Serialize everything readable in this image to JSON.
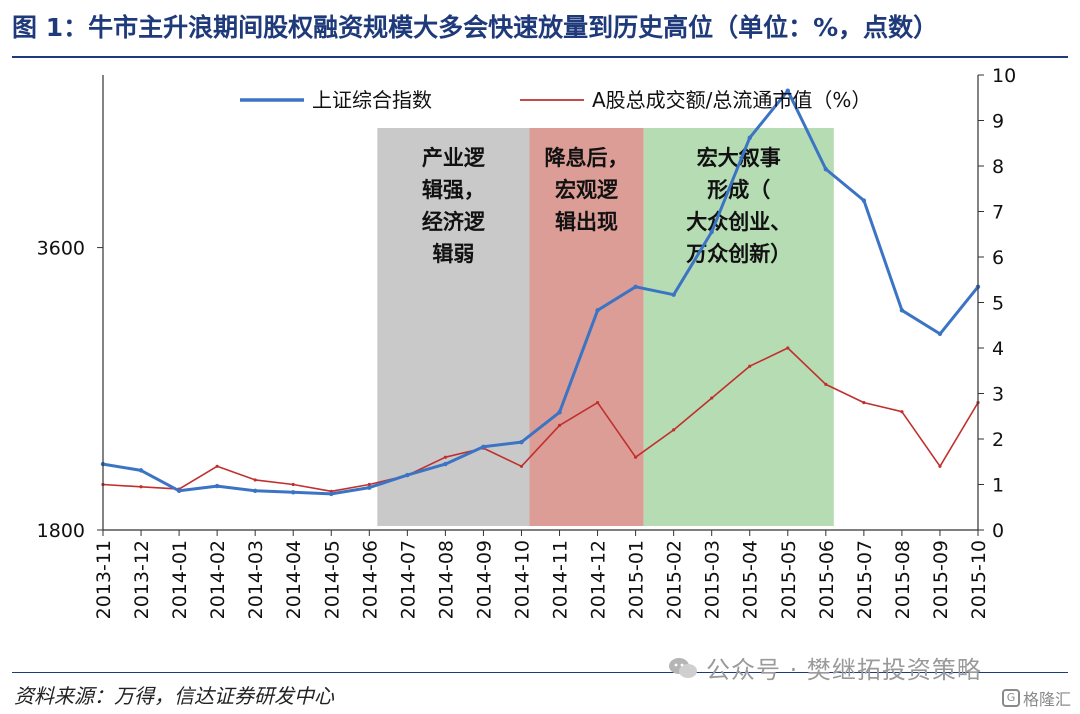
{
  "header": {
    "title": "图 1：牛市主升浪期间股权融资规模大多会快速放量到历史高位（单位：%，点数）"
  },
  "footer": {
    "source": "资料来源：万得，信达证券研发中心",
    "watermark": "公众号 · 樊继拓投资策略",
    "logo_text": "格隆汇"
  },
  "colors": {
    "sse_line": "#3b74c4",
    "ratio_line": "#c0302e",
    "band_gray": "#c9c9c9",
    "band_red": "#dc9d96",
    "band_green": "#b6dcb4",
    "title": "#1f3a7a"
  },
  "chart_data": {
    "type": "line",
    "x": [
      "2013-11",
      "2013-12",
      "2014-01",
      "2014-02",
      "2014-03",
      "2014-04",
      "2014-05",
      "2014-06",
      "2014-07",
      "2014-08",
      "2014-09",
      "2014-10",
      "2014-11",
      "2014-12",
      "2015-01",
      "2015-02",
      "2015-03",
      "2015-04",
      "2015-05",
      "2015-06",
      "2015-07",
      "2015-08",
      "2015-09",
      "2015-10"
    ],
    "x_tick_labels": [
      "2013-11",
      "2013-12",
      "2014-01",
      "2014-02",
      "2014-03",
      "2014-04",
      "2014-05",
      "2014-06",
      "2014-07",
      "2014-08",
      "2014-09",
      "2014-10",
      "2014-11",
      "2014-12",
      "2015-01",
      "2015-02",
      "2015-03",
      "2015-04",
      "2015-05",
      "2015-06",
      "2015-07",
      "2015-08",
      "2015-09",
      "2015-10"
    ],
    "y_left": {
      "min": 1800,
      "max": 4700,
      "ticks": [
        1800,
        3600
      ],
      "tick_labels": [
        "1800",
        "3600"
      ]
    },
    "y_right": {
      "min": 0,
      "max": 10,
      "ticks": [
        0,
        1,
        2,
        3,
        4,
        5,
        6,
        7,
        8,
        9,
        10
      ],
      "tick_labels": [
        "0",
        "1",
        "2",
        "3",
        "4",
        "5",
        "6",
        "7",
        "8",
        "9",
        "10"
      ]
    },
    "legend_position": "top",
    "grid": false,
    "series": [
      {
        "name": "上证综合指数",
        "axis": "left",
        "color": "#3b74c4",
        "values": [
          2220,
          2180,
          2050,
          2080,
          2050,
          2040,
          2030,
          2070,
          2150,
          2220,
          2330,
          2360,
          2550,
          3200,
          3350,
          3300,
          3700,
          4300,
          4600,
          4100,
          3900,
          3200,
          3050,
          3350
        ]
      },
      {
        "name": "A股总成交额/总流通市值（%）",
        "axis": "right",
        "color": "#c0302e",
        "values": [
          1.0,
          0.95,
          0.9,
          1.4,
          1.1,
          1.0,
          0.85,
          1.0,
          1.2,
          1.6,
          1.8,
          1.4,
          2.3,
          2.8,
          1.6,
          2.2,
          2.9,
          3.6,
          4.0,
          3.2,
          2.8,
          2.6,
          1.4,
          2.8
        ]
      }
    ],
    "annotations": [
      {
        "x_start": "2014-06",
        "x_end": "2014-10",
        "color": "#c9c9c9",
        "lines": [
          "产业逻",
          "辑强，",
          "经济逻",
          "辑弱"
        ]
      },
      {
        "x_start": "2014-10",
        "x_end": "2015-01",
        "color": "#dc9d96",
        "lines": [
          "降息后，",
          "宏观逻",
          "辑出现"
        ]
      },
      {
        "x_start": "2015-01",
        "x_end": "2015-06",
        "color": "#b6dcb4",
        "lines": [
          "宏大叙事",
          "形成（",
          "大众创业、",
          "万众创新）"
        ]
      }
    ]
  }
}
